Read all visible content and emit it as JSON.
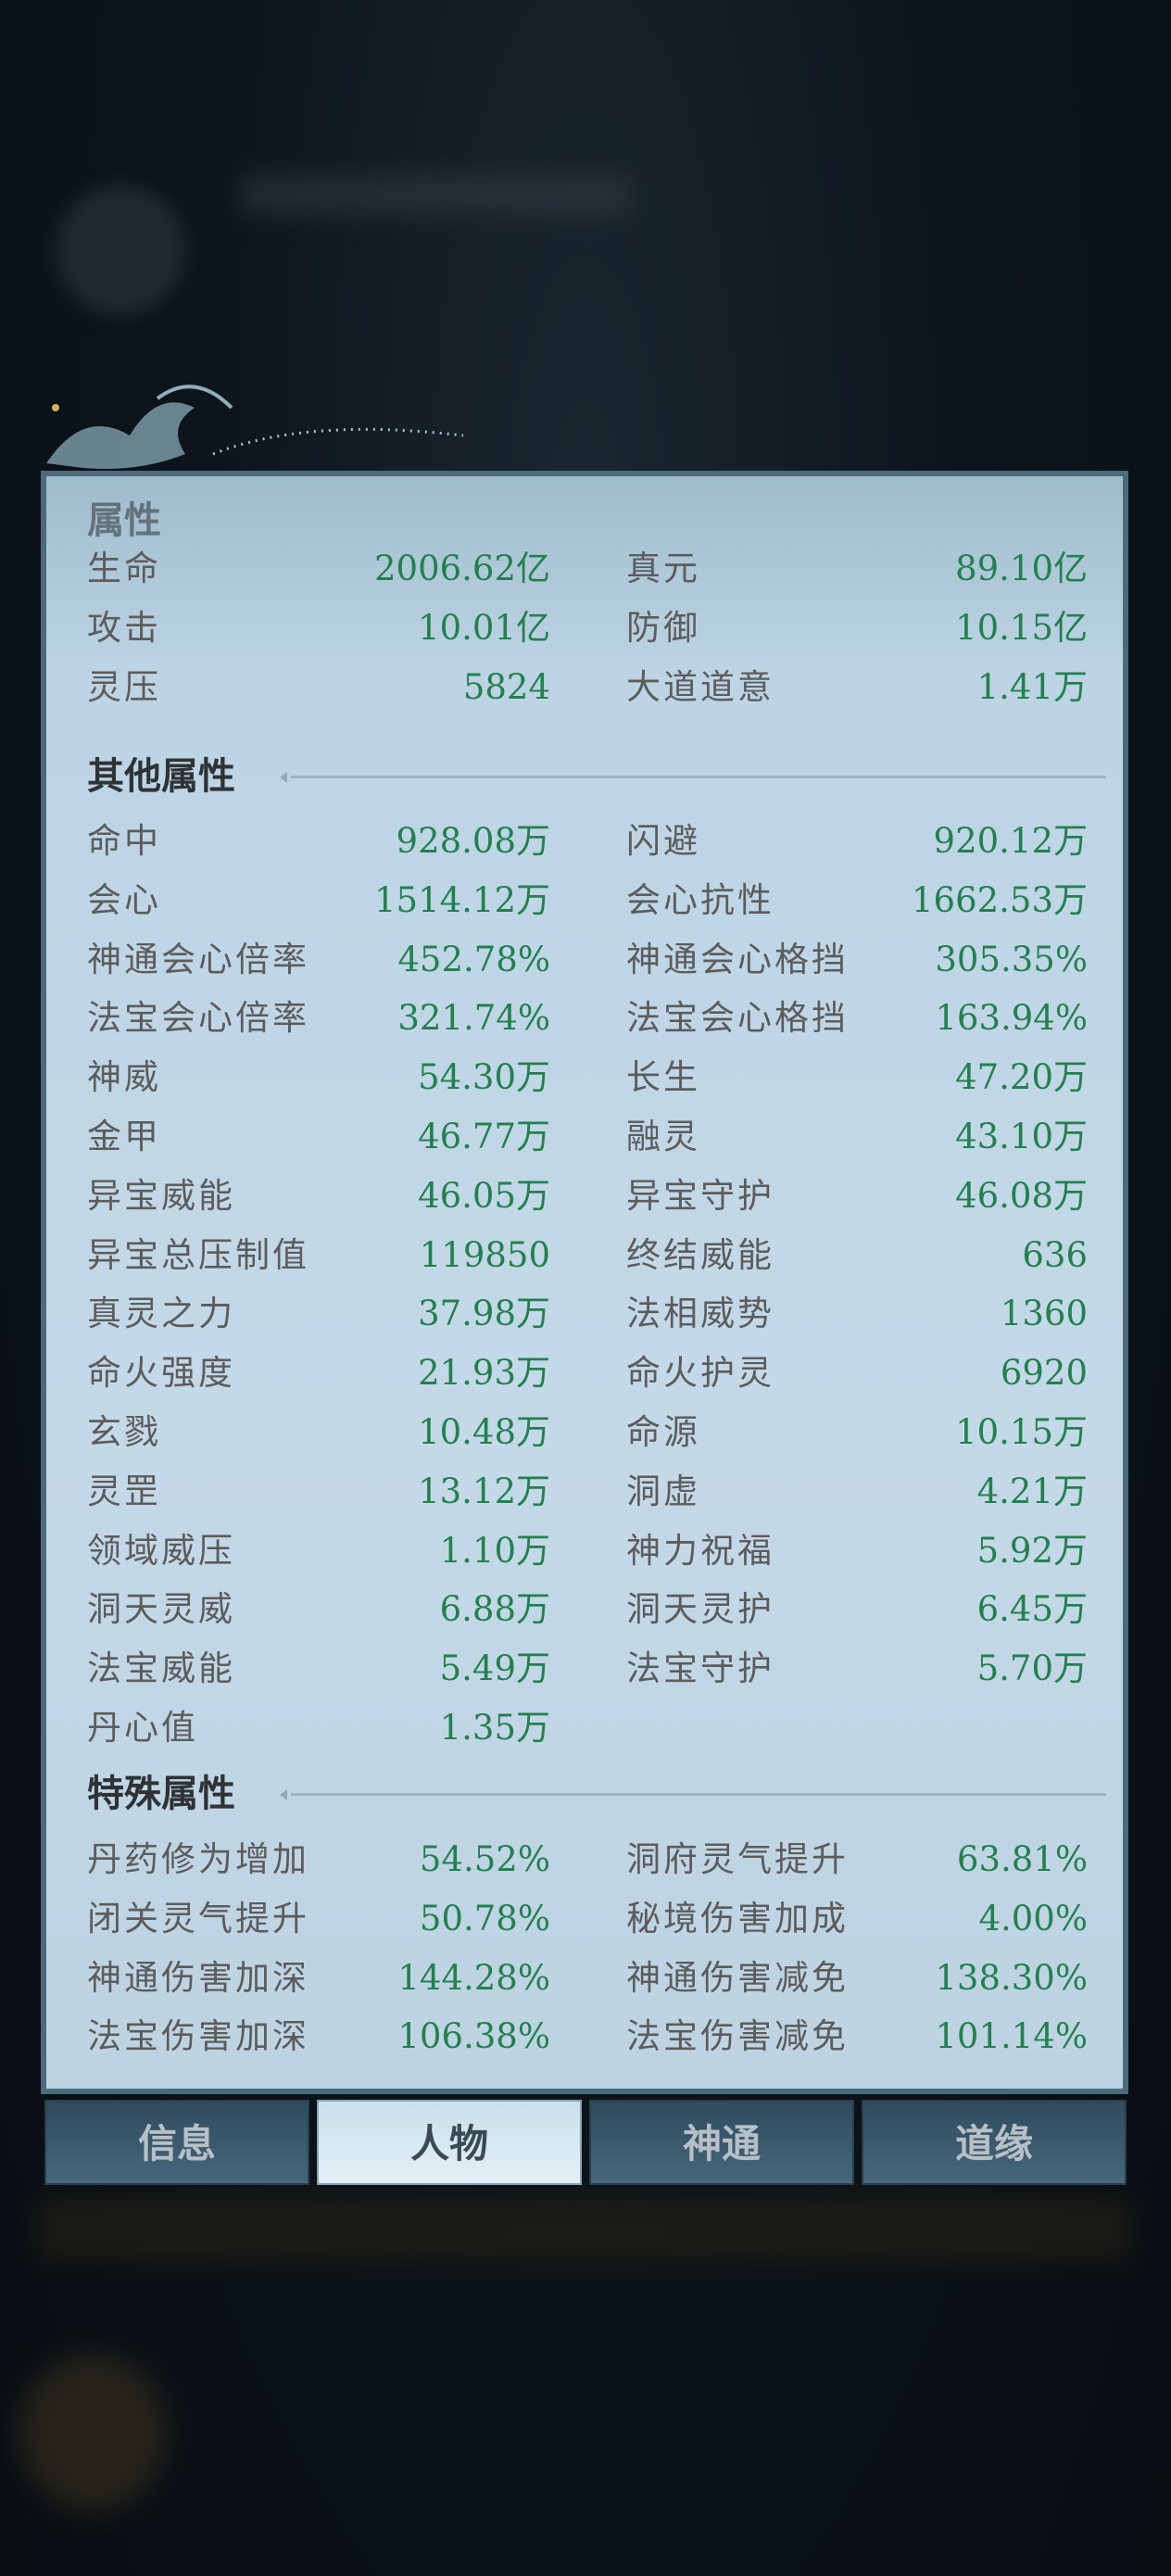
{
  "colors": {
    "value": "#23804f",
    "label": "#5c5c5c",
    "panel": "#c4d9e8",
    "tab_active": "#e4f0f6",
    "tab_inactive": "#3a5a6e"
  },
  "base": {
    "title": "属性",
    "rows": [
      {
        "l": "生命",
        "lv": "2006.62亿",
        "r": "真元",
        "rv": "89.10亿"
      },
      {
        "l": "攻击",
        "lv": "10.01亿",
        "r": "防御",
        "rv": "10.15亿"
      },
      {
        "l": "灵压",
        "lv": "5824",
        "r": "大道道意",
        "rv": "1.41万"
      }
    ]
  },
  "other": {
    "title": "其他属性",
    "rows": [
      {
        "l": "命中",
        "lv": "928.08万",
        "r": "闪避",
        "rv": "920.12万"
      },
      {
        "l": "会心",
        "lv": "1514.12万",
        "r": "会心抗性",
        "rv": "1662.53万"
      },
      {
        "l": "神通会心倍率",
        "lv": "452.78%",
        "r": "神通会心格挡",
        "rv": "305.35%"
      },
      {
        "l": "法宝会心倍率",
        "lv": "321.74%",
        "r": "法宝会心格挡",
        "rv": "163.94%"
      },
      {
        "l": "神威",
        "lv": "54.30万",
        "r": "长生",
        "rv": "47.20万"
      },
      {
        "l": "金甲",
        "lv": "46.77万",
        "r": "融灵",
        "rv": "43.10万"
      },
      {
        "l": "异宝威能",
        "lv": "46.05万",
        "r": "异宝守护",
        "rv": "46.08万"
      },
      {
        "l": "异宝总压制值",
        "lv": "119850",
        "r": "终结威能",
        "rv": "636"
      },
      {
        "l": "真灵之力",
        "lv": "37.98万",
        "r": "法相威势",
        "rv": "1360"
      },
      {
        "l": "命火强度",
        "lv": "21.93万",
        "r": "命火护灵",
        "rv": "6920"
      },
      {
        "l": "玄戮",
        "lv": "10.48万",
        "r": "命源",
        "rv": "10.15万"
      },
      {
        "l": "灵罡",
        "lv": "13.12万",
        "r": "洞虚",
        "rv": "4.21万"
      },
      {
        "l": "领域威压",
        "lv": "1.10万",
        "r": "神力祝福",
        "rv": "5.92万"
      },
      {
        "l": "洞天灵威",
        "lv": "6.88万",
        "r": "洞天灵护",
        "rv": "6.45万"
      },
      {
        "l": "法宝威能",
        "lv": "5.49万",
        "r": "法宝守护",
        "rv": "5.70万"
      },
      {
        "l": "丹心值",
        "lv": "1.35万",
        "r": "",
        "rv": ""
      }
    ]
  },
  "special": {
    "title": "特殊属性",
    "rows": [
      {
        "l": "丹药修为增加",
        "lv": "54.52%",
        "r": "洞府灵气提升",
        "rv": "63.81%"
      },
      {
        "l": "闭关灵气提升",
        "lv": "50.78%",
        "r": "秘境伤害加成",
        "rv": "4.00%"
      },
      {
        "l": "神通伤害加深",
        "lv": "144.28%",
        "r": "神通伤害减免",
        "rv": "138.30%"
      },
      {
        "l": "法宝伤害加深",
        "lv": "106.38%",
        "r": "法宝伤害减免",
        "rv": "101.14%"
      }
    ]
  },
  "tabs": [
    {
      "label": "信息",
      "active": false
    },
    {
      "label": "人物",
      "active": true
    },
    {
      "label": "神通",
      "active": false
    },
    {
      "label": "道缘",
      "active": false
    }
  ]
}
